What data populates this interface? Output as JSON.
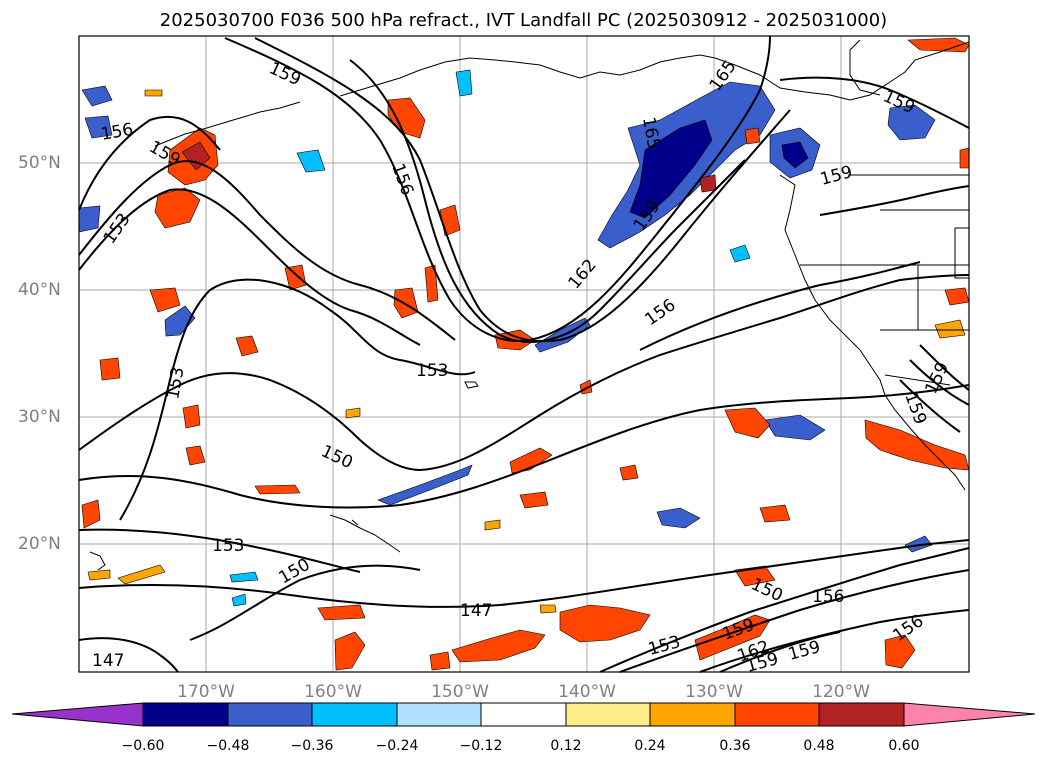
{
  "title": "2025030700 F036 500 hPa refract., IVT Landfall PC (2025030912 - 2025031000)",
  "map": {
    "lat_labels": [
      "50°N",
      "40°N",
      "30°N",
      "20°N"
    ],
    "lon_labels": [
      "170°W",
      "160°W",
      "150°W",
      "140°W",
      "130°W",
      "120°W"
    ],
    "contour_labels": [
      "159",
      "156",
      "159",
      "153",
      "156",
      "165",
      "165",
      "159",
      "159",
      "159",
      "162",
      "156",
      "153",
      "153",
      "150",
      "153",
      "150",
      "147",
      "147",
      "150",
      "156",
      "153",
      "159",
      "162",
      "159",
      "159",
      "156",
      "159",
      "159"
    ]
  },
  "colorbar": {
    "ticks": [
      "−0.60",
      "−0.48",
      "−0.36",
      "−0.24",
      "−0.12",
      "0.12",
      "0.24",
      "0.36",
      "0.48",
      "0.60"
    ],
    "colors": [
      "#9932cc",
      "#00008b",
      "#3a5fcd",
      "#00bfff",
      "#b0e2ff",
      "#ffffff",
      "#ffec8b",
      "#ffa500",
      "#ff4500",
      "#b22222",
      "#ff82ab"
    ]
  }
}
